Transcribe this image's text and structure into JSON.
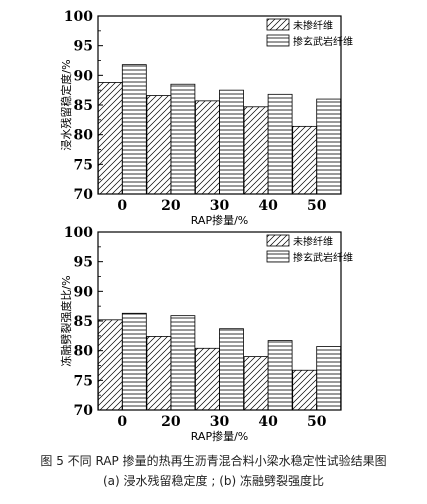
{
  "legend_labels": [
    "未掺纤维",
    "掺玄武岩纤维"
  ],
  "caption": {
    "line1": "图 5  不同 RAP 掺量的热再生沥青混合料小梁水稳定性试验结果图",
    "line2": "(a) 浸水残留稳定度 ; (b) 冻融劈裂强度比"
  },
  "chart_data": [
    {
      "type": "bar",
      "categories": [
        "0",
        "20",
        "30",
        "40",
        "50"
      ],
      "series": [
        {
          "name": "未掺纤维",
          "values": [
            88.8,
            86.6,
            85.7,
            84.7,
            81.4
          ],
          "pattern": "diagonal"
        },
        {
          "name": "掺玄武岩纤维",
          "values": [
            91.8,
            88.5,
            87.5,
            86.8,
            86.0
          ],
          "pattern": "horizontal"
        }
      ],
      "xlabel": "RAP掺量/%",
      "ylabel": "浸水残留稳定度/%",
      "ylim": [
        70,
        100
      ],
      "yticks": [
        70,
        75,
        80,
        85,
        90,
        95,
        100
      ],
      "legend_position": "top-right",
      "grid": false
    },
    {
      "type": "bar",
      "categories": [
        "0",
        "20",
        "30",
        "40",
        "50"
      ],
      "series": [
        {
          "name": "未掺纤维",
          "values": [
            85.2,
            82.4,
            80.4,
            79.0,
            76.7
          ],
          "pattern": "diagonal"
        },
        {
          "name": "掺玄武岩纤维",
          "values": [
            86.3,
            85.9,
            83.7,
            81.7,
            80.7
          ],
          "pattern": "horizontal"
        }
      ],
      "xlabel": "RAP掺量/%",
      "ylabel": "冻融劈裂强度比/%",
      "ylim": [
        70,
        100
      ],
      "yticks": [
        70,
        75,
        80,
        85,
        90,
        95,
        100
      ],
      "legend_position": "top-right",
      "grid": false
    }
  ]
}
